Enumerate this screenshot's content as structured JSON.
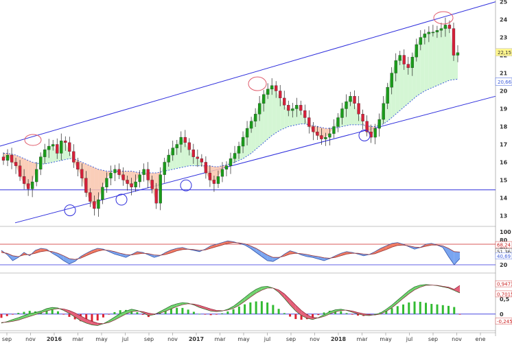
{
  "chart_data": [
    {
      "type": "candlestick",
      "panel": "price",
      "x_axis": [
        "sep",
        "nov",
        "2016",
        "mar",
        "may",
        "jul",
        "sep",
        "nov",
        "2017",
        "mar",
        "may",
        "jul",
        "sep",
        "nov",
        "2018",
        "mar",
        "may",
        "jul",
        "sep",
        "nov",
        "ene"
      ],
      "y_ticks": [
        "13",
        "14",
        "15",
        "16",
        "17",
        "18",
        "19",
        "20",
        "21",
        "22",
        "23",
        "24",
        "25"
      ],
      "ylim": [
        12.4,
        25.1
      ],
      "last_price": 22.15,
      "last_price_label": "22,15",
      "moving_average_label": "20,66",
      "moving_average_last": 20.66,
      "horizontal_support": 14.45,
      "upper_channel": {
        "from": [
          0,
          16.9
        ],
        "to": [
          1,
          25.0
        ]
      },
      "lower_channel": {
        "from": [
          0,
          12.6
        ],
        "to": [
          1,
          19.7
        ]
      },
      "closes": [
        16.1,
        16.4,
        16.0,
        15.8,
        15.2,
        14.8,
        14.5,
        14.9,
        15.6,
        16.3,
        16.7,
        16.9,
        17.0,
        16.5,
        17.2,
        17.1,
        16.6,
        16.0,
        15.6,
        15.1,
        14.3,
        13.8,
        13.4,
        13.9,
        14.6,
        15.1,
        15.4,
        15.6,
        15.3,
        15.0,
        14.8,
        14.6,
        14.9,
        15.3,
        15.6,
        15.0,
        14.5,
        13.7,
        15.3,
        16.0,
        16.4,
        16.8,
        17.0,
        17.4,
        17.1,
        16.7,
        16.3,
        16.2,
        16.0,
        15.4,
        15.0,
        14.8,
        15.2,
        15.6,
        15.8,
        16.2,
        16.5,
        16.9,
        17.4,
        17.9,
        18.3,
        18.7,
        19.3,
        19.8,
        20.1,
        20.3,
        20.0,
        19.6,
        19.2,
        18.9,
        19.0,
        19.2,
        18.9,
        18.5,
        18.0,
        17.7,
        17.5,
        17.3,
        17.4,
        17.6,
        18.0,
        18.5,
        19.0,
        19.4,
        19.7,
        19.3,
        18.7,
        18.3,
        17.7,
        17.4,
        17.9,
        18.4,
        19.3,
        20.2,
        21.0,
        21.7,
        22.0,
        21.5,
        21.3,
        21.9,
        22.6,
        23.0,
        23.2,
        23.3,
        23.3,
        23.4,
        23.5,
        23.7,
        23.5,
        22.0,
        22.15
      ],
      "ma": [
        16.5,
        16.5,
        16.45,
        16.4,
        16.3,
        16.2,
        16.1,
        16.0,
        15.95,
        15.9,
        15.9,
        15.95,
        16.0,
        16.05,
        16.1,
        16.15,
        16.2,
        16.2,
        16.1,
        16.0,
        15.9,
        15.8,
        15.7,
        15.6,
        15.55,
        15.5,
        15.5,
        15.5,
        15.5,
        15.5,
        15.5,
        15.5,
        15.45,
        15.4,
        15.4,
        15.4,
        15.4,
        15.4,
        15.45,
        15.5,
        15.55,
        15.6,
        15.65,
        15.7,
        15.75,
        15.8,
        15.8,
        15.8,
        15.8,
        15.8,
        15.8,
        15.75,
        15.75,
        15.8,
        15.85,
        15.9,
        16.0,
        16.1,
        16.2,
        16.35,
        16.5,
        16.7,
        16.9,
        17.1,
        17.3,
        17.5,
        17.65,
        17.8,
        17.9,
        18.0,
        18.05,
        18.1,
        18.15,
        18.15,
        18.1,
        18.05,
        18.0,
        17.95,
        17.9,
        17.9,
        17.9,
        17.95,
        18.0,
        18.05,
        18.1,
        18.1,
        18.1,
        18.1,
        18.05,
        18.0,
        18.0,
        18.05,
        18.15,
        18.3,
        18.5,
        18.7,
        18.9,
        19.1,
        19.3,
        19.5,
        19.7,
        19.85,
        20.0,
        20.1,
        20.2,
        20.3,
        20.4,
        20.5,
        20.6,
        20.63,
        20.66
      ]
    },
    {
      "type": "area",
      "panel": "oscillator",
      "y_ticks": [
        "20",
        "40",
        "60",
        "80",
        "100"
      ],
      "ylim": [
        0,
        100
      ],
      "upper_level": 70,
      "lower_level": 20,
      "value_labels": [
        "68,24",
        "51,36",
        "40,69"
      ],
      "fast": [
        55,
        45,
        30,
        38,
        50,
        42,
        55,
        60,
        58,
        48,
        40,
        30,
        22,
        28,
        40,
        48,
        55,
        60,
        58,
        52,
        46,
        42,
        38,
        45,
        52,
        50,
        44,
        38,
        42,
        50,
        56,
        60,
        62,
        58,
        55,
        52,
        58,
        66,
        70,
        74,
        78,
        76,
        72,
        68,
        60,
        50,
        40,
        30,
        28,
        36,
        46,
        54,
        50,
        44,
        40,
        38,
        34,
        30,
        35,
        42,
        48,
        52,
        50,
        46,
        42,
        45,
        52,
        60,
        66,
        72,
        74,
        70,
        64,
        58,
        62,
        70,
        72,
        68,
        62,
        40,
        20,
        35
      ],
      "slow": [
        50,
        48,
        42,
        40,
        44,
        45,
        48,
        52,
        54,
        52,
        48,
        42,
        35,
        33,
        36,
        42,
        48,
        53,
        56,
        55,
        52,
        48,
        45,
        44,
        46,
        48,
        47,
        44,
        43,
        45,
        49,
        54,
        57,
        58,
        57,
        55,
        56,
        60,
        64,
        68,
        72,
        74,
        73,
        71,
        66,
        60,
        52,
        44,
        38,
        38,
        41,
        46,
        48,
        47,
        45,
        42,
        40,
        37,
        36,
        38,
        42,
        46,
        48,
        48,
        46,
        45,
        47,
        52,
        57,
        63,
        67,
        68,
        66,
        63,
        62,
        65,
        68,
        68,
        66,
        60,
        52,
        51
      ]
    },
    {
      "type": "bar",
      "panel": "macd",
      "y_ticks": [
        "0",
        "0,5",
        "1"
      ],
      "ylim": [
        -0.55,
        1.2
      ],
      "value_labels": [
        "0,9473",
        "0,7015",
        "-0,2458"
      ],
      "macd": [
        -0.3,
        -0.25,
        -0.18,
        -0.12,
        -0.05,
        0.02,
        0.05,
        0.1,
        0.18,
        0.22,
        0.2,
        0.12,
        0.02,
        -0.1,
        -0.22,
        -0.3,
        -0.36,
        -0.38,
        -0.32,
        -0.22,
        -0.1,
        0.02,
        0.1,
        0.16,
        0.12,
        0.04,
        -0.05,
        -0.02,
        0.08,
        0.18,
        0.28,
        0.34,
        0.38,
        0.36,
        0.3,
        0.22,
        0.16,
        0.1,
        0.08,
        0.1,
        0.16,
        0.26,
        0.4,
        0.55,
        0.7,
        0.82,
        0.9,
        0.92,
        0.86,
        0.72,
        0.52,
        0.3,
        0.1,
        -0.05,
        -0.14,
        -0.18,
        -0.12,
        -0.02,
        0.08,
        0.14,
        0.16,
        0.12,
        0.06,
        0.0,
        -0.04,
        -0.05,
        -0.02,
        0.04,
        0.16,
        0.3,
        0.46,
        0.62,
        0.78,
        0.9,
        0.96,
        0.98,
        0.96,
        0.94,
        0.9,
        0.86,
        0.78,
        0.7
      ],
      "signal": [
        -0.28,
        -0.27,
        -0.24,
        -0.2,
        -0.14,
        -0.08,
        -0.02,
        0.04,
        0.1,
        0.15,
        0.18,
        0.17,
        0.12,
        0.04,
        -0.06,
        -0.16,
        -0.24,
        -0.3,
        -0.32,
        -0.28,
        -0.2,
        -0.1,
        0.0,
        0.08,
        0.1,
        0.08,
        0.03,
        0.0,
        0.03,
        0.09,
        0.17,
        0.25,
        0.31,
        0.34,
        0.33,
        0.29,
        0.23,
        0.17,
        0.12,
        0.11,
        0.13,
        0.19,
        0.29,
        0.42,
        0.56,
        0.69,
        0.79,
        0.86,
        0.86,
        0.8,
        0.67,
        0.49,
        0.3,
        0.12,
        -0.02,
        -0.11,
        -0.13,
        -0.08,
        0.0,
        0.07,
        0.12,
        0.13,
        0.1,
        0.05,
        0.01,
        -0.02,
        -0.03,
        0.0,
        0.09,
        0.21,
        0.36,
        0.52,
        0.67,
        0.8,
        0.89,
        0.95,
        0.96,
        0.95,
        0.92,
        0.89,
        0.82,
        0.95
      ]
    }
  ]
}
